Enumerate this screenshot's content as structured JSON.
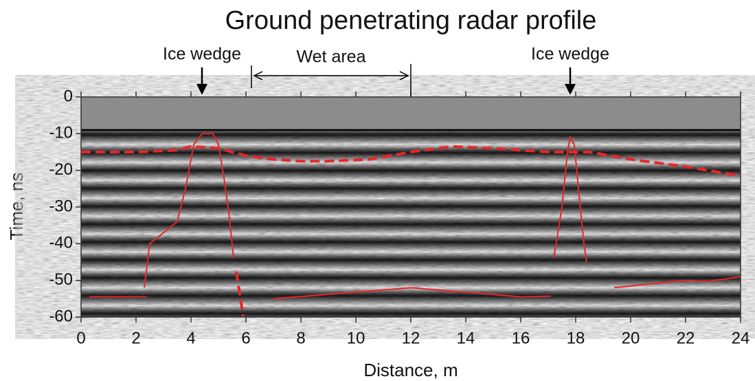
{
  "chart_data": {
    "type": "line",
    "title": "Ground penetrating radar profile",
    "xlabel": "Distance, m",
    "ylabel": "Time, ns",
    "xlim": [
      0,
      24
    ],
    "xticks": [
      0,
      2,
      4,
      6,
      8,
      10,
      12,
      14,
      16,
      18,
      20,
      22,
      24
    ],
    "ylim": [
      -60,
      0
    ],
    "yticks": [
      0,
      -10,
      -20,
      -30,
      -40,
      -50,
      -60
    ],
    "hline": -9,
    "annotations": [
      {
        "text": "Ice wedge",
        "x": 4.4
      },
      {
        "text": "Ice wedge",
        "x": 17.8
      }
    ],
    "span": {
      "text": "Wet area",
      "x0": 6.2,
      "x1": 12
    },
    "series": [
      {
        "color": "#e8262a",
        "style": "dashed",
        "x": [
          0,
          2,
          3.5,
          4,
          5,
          6,
          7,
          8,
          9,
          10.5,
          12,
          13.5,
          15,
          17,
          18.5,
          20,
          22,
          24
        ],
        "values": [
          -15,
          -15,
          -14.5,
          -13.5,
          -14,
          -16,
          -17,
          -17.5,
          -17.5,
          -17,
          -15,
          -13.5,
          -14,
          -15,
          -15,
          -17,
          -19,
          -21.5
        ]
      },
      {
        "color": "#e8262a",
        "style": "solid",
        "x": [
          2.3,
          2.5,
          3,
          3.5,
          3.8,
          4.1,
          4.4,
          4.8,
          5.0,
          5.2,
          5.4,
          5.55
        ],
        "values": [
          -52,
          -40,
          -37,
          -34,
          -25,
          -13,
          -10,
          -10,
          -13,
          -22,
          -33,
          -44
        ]
      },
      {
        "color": "#e8262a",
        "style": "dashed",
        "x": [
          5.65,
          5.9
        ],
        "values": [
          -47.6,
          -59.8
        ]
      },
      {
        "color": "#e8262a",
        "style": "solid",
        "x": [
          17.2,
          17.5,
          17.7,
          17.8,
          17.95,
          18.1,
          18.3,
          18.4
        ],
        "values": [
          -44,
          -30,
          -15,
          -11,
          -13,
          -25,
          -40,
          -45
        ]
      },
      {
        "color": "#e8262a",
        "style": "solid",
        "x": [
          0.3,
          2.4
        ],
        "values": [
          -54.5,
          -54.5
        ]
      },
      {
        "color": "#e8262a",
        "style": "solid",
        "x": [
          7,
          12,
          16,
          17.1
        ],
        "values": [
          -55,
          -52,
          -54.5,
          -54.3
        ]
      },
      {
        "color": "#e8262a",
        "style": "solid",
        "x": [
          19.4,
          22,
          22.8,
          24
        ],
        "values": [
          -52,
          -50,
          -50.3,
          -49
        ]
      }
    ]
  }
}
